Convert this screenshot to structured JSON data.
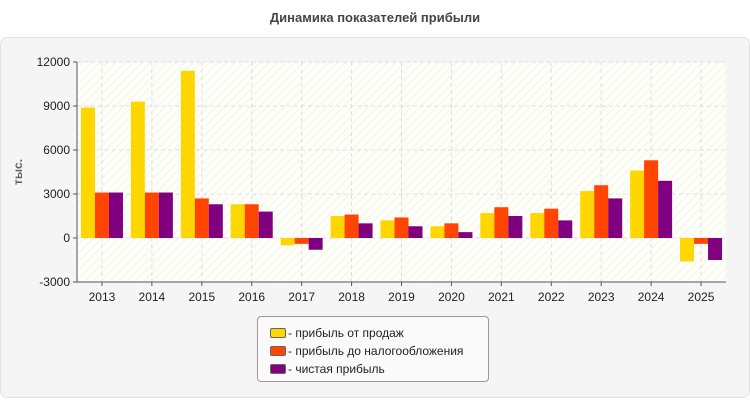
{
  "chart_data": {
    "type": "bar",
    "title": "Динамика показателей прибыли",
    "ylabel": "тыс.",
    "xlabel": "",
    "categories": [
      "2013",
      "2014",
      "2015",
      "2016",
      "2017",
      "2018",
      "2019",
      "2020",
      "2021",
      "2022",
      "2023",
      "2024",
      "2025"
    ],
    "ylim": [
      -3000,
      12000
    ],
    "yticks": [
      12000,
      9000,
      6000,
      3000,
      0,
      -3000
    ],
    "grid": true,
    "legend_position": "bottom-center",
    "series": [
      {
        "name": "- прибыль от продаж",
        "color": "#ffd700",
        "values": [
          8900,
          9300,
          11400,
          2300,
          -500,
          1500,
          1200,
          800,
          1700,
          1700,
          3200,
          4600,
          -1600
        ]
      },
      {
        "name": "- прибыль до налогообложения",
        "color": "#ff4500",
        "values": [
          3100,
          3100,
          2700,
          2300,
          -400,
          1600,
          1400,
          1000,
          2100,
          2000,
          3600,
          5300,
          -400
        ]
      },
      {
        "name": "- чистая прибыль",
        "color": "#800080",
        "values": [
          3100,
          3100,
          2300,
          1800,
          -800,
          1000,
          800,
          400,
          1500,
          1200,
          2700,
          3900,
          -1500
        ]
      }
    ]
  }
}
